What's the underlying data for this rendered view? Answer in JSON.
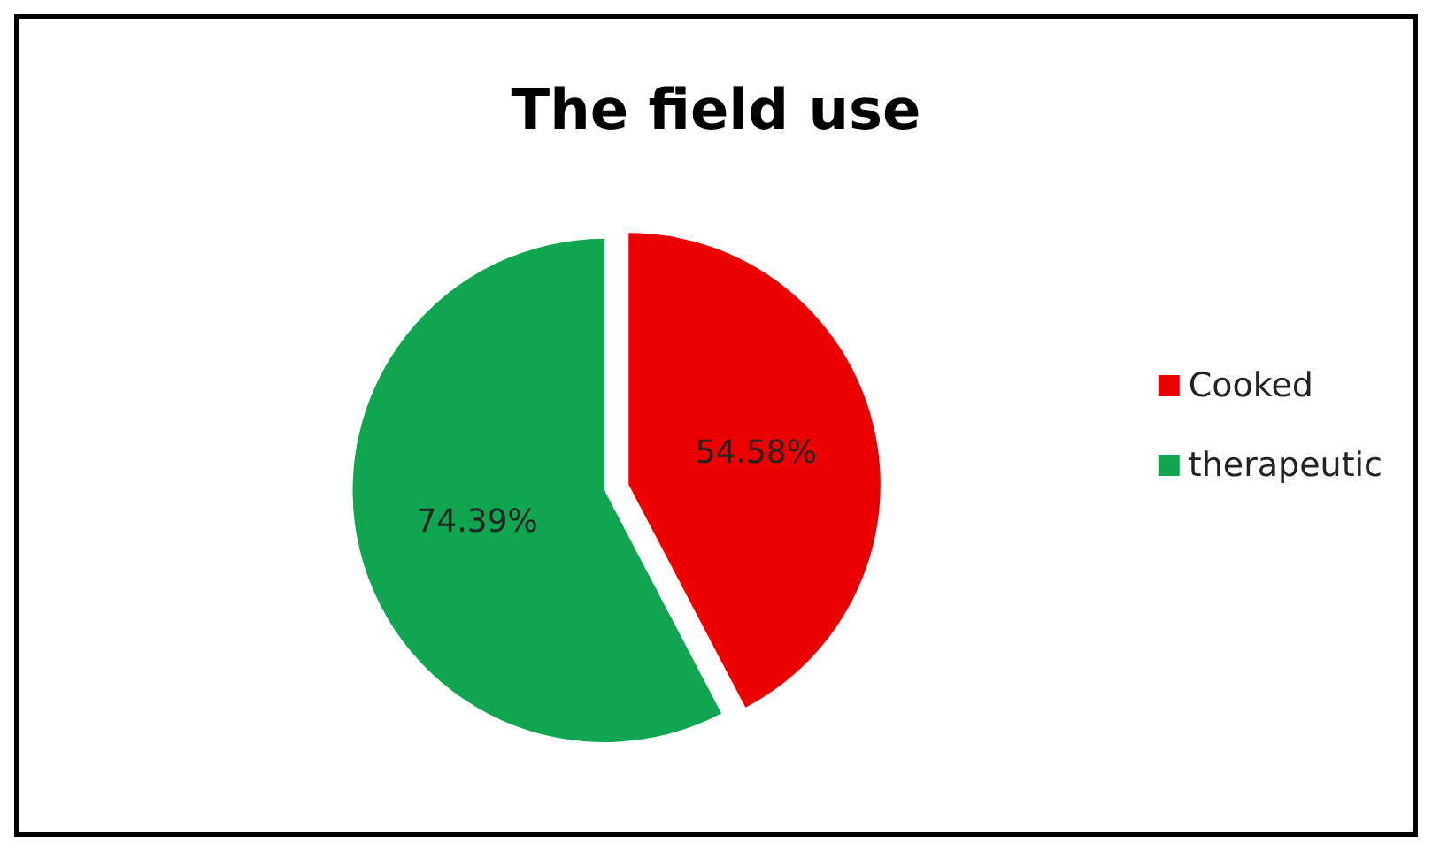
{
  "chart_data": {
    "type": "pie",
    "title": "The field use",
    "categories": [
      "Cooked",
      "therapeutic"
    ],
    "values": [
      54.58,
      74.39
    ],
    "colors": [
      "#ee0000",
      "#10a651"
    ],
    "value_labels": [
      "54.58%",
      "74.39%"
    ],
    "legend": "right"
  }
}
